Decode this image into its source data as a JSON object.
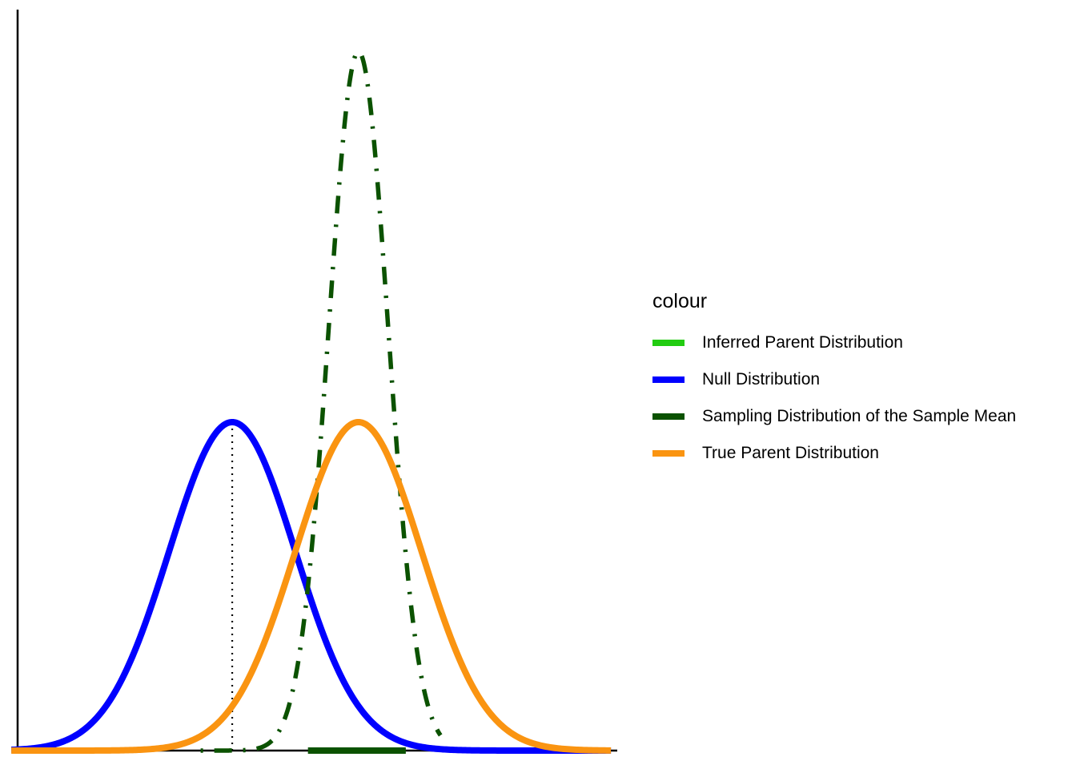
{
  "chart_data": {
    "type": "line",
    "title": "",
    "xlabel": "",
    "ylabel": "",
    "xlim": [
      -3.4,
      6.1
    ],
    "ylim": [
      0,
      0.9
    ],
    "axes": {
      "ticks": false,
      "grid": false,
      "axis_lines": "left-bottom"
    },
    "legend": {
      "title": "colour",
      "placement": "right",
      "entries": [
        {
          "label": "Inferred Parent Distribution",
          "color": "#22cc11"
        },
        {
          "label": "Null Distribution",
          "color": "#0000ff"
        },
        {
          "label": "Sampling Distribution of the Sample Mean",
          "color": "#0b5200"
        },
        {
          "label": "True Parent Distribution",
          "color": "#fa9411"
        }
      ]
    },
    "series": [
      {
        "name": "Null Distribution",
        "distribution": "normal",
        "mean": 0,
        "sd": 1,
        "x_range": [
          -3.5,
          6
        ],
        "color": "#0000ff",
        "style": "solid"
      },
      {
        "name": "True Parent Distribution",
        "distribution": "normal",
        "mean": 2,
        "sd": 1,
        "x_range": [
          -3.5,
          6
        ],
        "color": "#fa9411",
        "style": "solid"
      },
      {
        "name": "Sampling Distribution of the Sample Mean",
        "distribution": "normal",
        "mean": 2,
        "sd": 0.47,
        "x_range": [
          -0.5,
          3.3
        ],
        "color": "#0b5200",
        "style": "dotdash"
      }
    ],
    "reference_lines": [
      {
        "type": "vertical",
        "x": 0,
        "y_to": 0.399,
        "style": "dotted",
        "color": "#000000"
      }
    ],
    "rug": {
      "x_from": 1.2,
      "x_to": 2.75,
      "color": "#0b5200"
    }
  }
}
